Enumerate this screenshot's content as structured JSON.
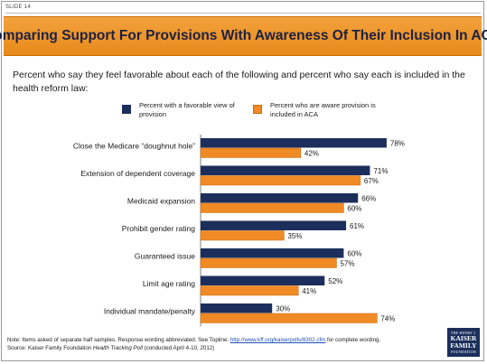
{
  "slide_label": "SLIDE 14",
  "title": "Comparing Support For Provisions With Awareness Of Their Inclusion In ACA",
  "subtitle": "Percent who say they feel favorable about each of the following and percent who say each is included in the health reform law:",
  "colors": {
    "favorable": "#1c2f5c",
    "aware": "#ef8a25",
    "title_bg": "#ee9a33"
  },
  "chart_data": {
    "type": "bar",
    "orientation": "horizontal",
    "categories": [
      "Close the Medicare “doughnut hole”",
      "Extension of dependent coverage",
      "Medicaid expansion",
      "Prohibit gender rating",
      "Guaranteed issue",
      "Limit age rating",
      "Individual mandate/penalty"
    ],
    "series": [
      {
        "name": "Percent with a favorable view of provision",
        "values": [
          78,
          71,
          66,
          61,
          60,
          52,
          30
        ],
        "color": "#1c2f5c"
      },
      {
        "name": "Percent who are aware provision is included in ACA",
        "values": [
          42,
          67,
          60,
          35,
          57,
          41,
          74
        ],
        "color": "#ef8a25"
      }
    ],
    "value_suffix": "%",
    "xlim": [
      0,
      100
    ],
    "grid": false,
    "legend_position": "top"
  },
  "legend": [
    {
      "label": "Percent with a favorable view of provision",
      "color": "#1c2f5c"
    },
    {
      "label": "Percent who are aware provision is included in ACA",
      "color": "#ef8a25"
    }
  ],
  "footnote": {
    "note_prefix": "Note: Items asked of separate half samples. Response wording abbreviated. See Topline: ",
    "link_text": "http://www.kff.org/kaiserpolls/8302.cfm",
    "note_suffix": " for complete wording.",
    "source_prefix": "Source: Kaiser Family Foundation ",
    "source_title": "Health Tracking Poll",
    "source_suffix": " (conducted April 4-10, 2012)"
  },
  "logo": {
    "line1": "THE HENRY J.",
    "line2": "KAISER",
    "line3": "FAMILY",
    "line4": "FOUNDATION"
  }
}
